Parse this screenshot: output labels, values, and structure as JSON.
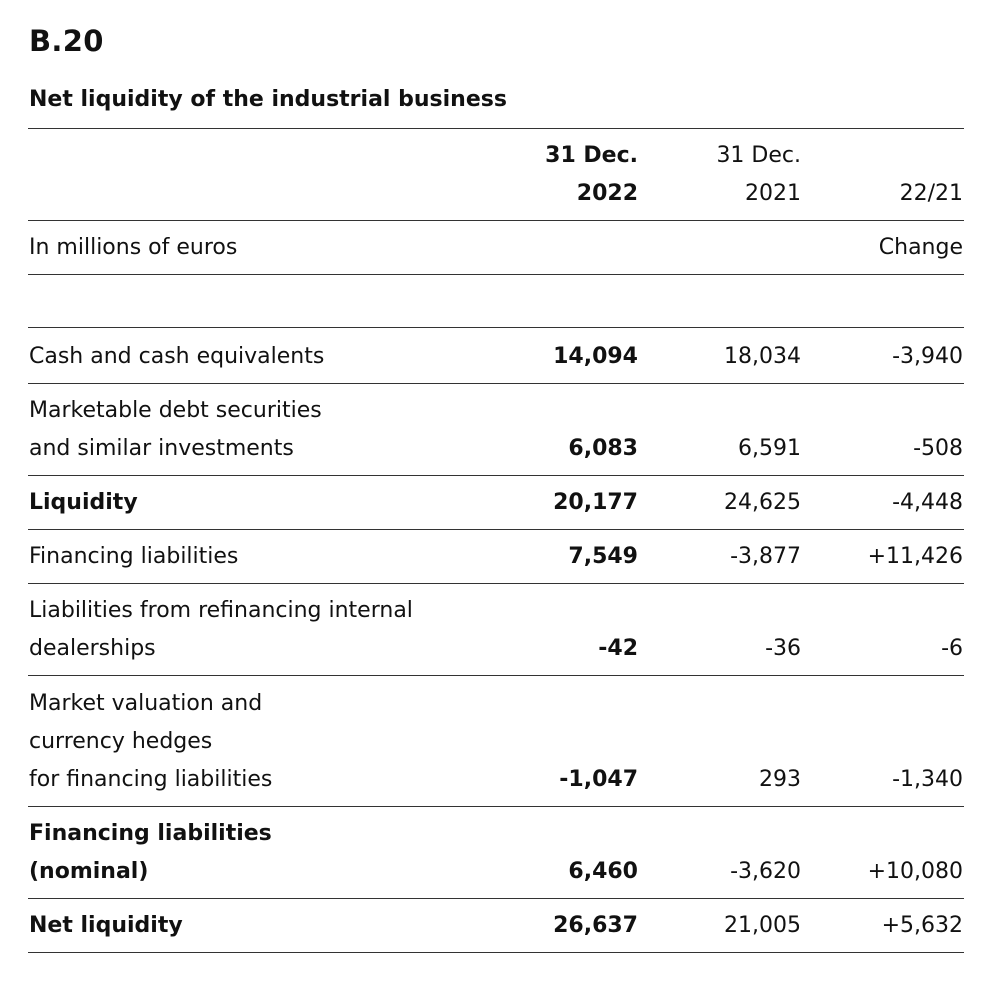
{
  "table_id": "B.20",
  "title": "Net liquidity of the industrial business",
  "header": {
    "col1_line1": "31 Dec.",
    "col1_line2": "2022",
    "col2_line1": "31 Dec.",
    "col2_line2": "2021",
    "col3_line2": "22/21",
    "unit_label": "In millions of euros",
    "change_label": "Change"
  },
  "rows": [
    {
      "label_lines": [
        "Cash and cash equivalents"
      ],
      "v2022": "14,094",
      "v2021": "18,034",
      "change": "-3,940",
      "bold": false
    },
    {
      "label_lines": [
        "Marketable debt securities",
        "and similar investments"
      ],
      "v2022": "6,083",
      "v2021": "6,591",
      "change": "-508",
      "bold": false
    },
    {
      "label_lines": [
        "Liquidity"
      ],
      "v2022": "20,177",
      "v2021": "24,625",
      "change": "-4,448",
      "bold": true
    },
    {
      "label_lines": [
        "Financing liabilities"
      ],
      "v2022": "7,549",
      "v2021": "-3,877",
      "change": "+11,426",
      "bold": false
    },
    {
      "label_lines": [
        "Liabilities from refinancing internal",
        "dealerships"
      ],
      "v2022": "-42",
      "v2021": "-36",
      "change": "-6",
      "bold": false
    },
    {
      "label_lines": [
        "Market valuation and",
        "currency hedges",
        "for financing liabilities"
      ],
      "v2022": "-1,047",
      "v2021": "293",
      "change": "-1,340",
      "bold": false
    },
    {
      "label_lines": [
        "Financing liabilities",
        "(nominal)"
      ],
      "v2022": "6,460",
      "v2021": "-3,620",
      "change": "+10,080",
      "bold": true
    },
    {
      "label_lines": [
        "Net liquidity"
      ],
      "v2022": "26,637",
      "v2021": "21,005",
      "change": "+5,632",
      "bold": true
    }
  ]
}
